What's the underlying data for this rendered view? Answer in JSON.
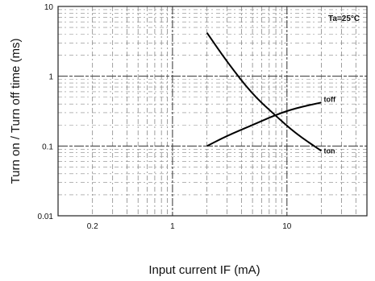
{
  "chart_data": {
    "type": "line",
    "xlabel": "Input current  IF (mA)",
    "ylabel": "Turn on / Turn off time  (ms)",
    "annotation": "Ta=25°C",
    "x_scale": "log",
    "y_scale": "log",
    "xlim": [
      0.1,
      50
    ],
    "ylim": [
      0.01,
      10
    ],
    "x_ticks": [
      {
        "value": 0.2,
        "label": "0.2"
      },
      {
        "value": 1,
        "label": "1"
      },
      {
        "value": 10,
        "label": "10"
      }
    ],
    "y_ticks": [
      {
        "value": 10,
        "label": "10"
      },
      {
        "value": 1,
        "label": "1"
      },
      {
        "value": 0.1,
        "label": "0.1"
      },
      {
        "value": 0.01,
        "label": "0.01"
      }
    ],
    "grid": true,
    "series": [
      {
        "name": "ton",
        "x": [
          2,
          3,
          5,
          8,
          12,
          20
        ],
        "y": [
          4.2,
          1.6,
          0.55,
          0.27,
          0.15,
          0.085
        ]
      },
      {
        "name": "toff",
        "x": [
          2,
          3,
          5,
          8,
          12,
          20
        ],
        "y": [
          0.1,
          0.14,
          0.2,
          0.28,
          0.35,
          0.42
        ]
      }
    ]
  }
}
